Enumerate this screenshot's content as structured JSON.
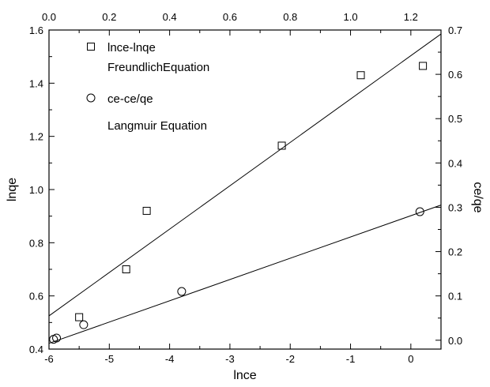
{
  "chart_data": {
    "type": "scatter",
    "title": "",
    "grid": false,
    "legend_position": "top-left",
    "colors": {
      "ink": "#000000",
      "background": "#ffffff"
    },
    "axes": {
      "x_bottom": {
        "label": "lnce",
        "range": [
          -6,
          0.5
        ],
        "ticks": [
          -6,
          -5,
          -4,
          -3,
          -2,
          -1,
          0
        ],
        "tick_labels": [
          "-6",
          "-5",
          "-4",
          "-3",
          "-2",
          "-1",
          "0"
        ]
      },
      "x_top": {
        "label": "",
        "range": [
          0,
          1.3
        ],
        "ticks": [
          0,
          0.2,
          0.4,
          0.6,
          0.8,
          1.0,
          1.2
        ],
        "tick_labels": [
          "0.0",
          "0.2",
          "0.4",
          "0.6",
          "0.8",
          "1.0",
          "1.2"
        ]
      },
      "y_left": {
        "label": "lnqe",
        "range": [
          0.4,
          1.6
        ],
        "ticks": [
          0.4,
          0.6,
          0.8,
          1.0,
          1.2,
          1.4,
          1.6
        ],
        "tick_labels": [
          "0.4",
          "0.6",
          "0.8",
          "1.0",
          "1.2",
          "1.4",
          "1.6"
        ]
      },
      "y_right": {
        "label": "ce/qe",
        "range": [
          -0.02,
          0.7
        ],
        "ticks": [
          0.0,
          0.1,
          0.2,
          0.3,
          0.4,
          0.5,
          0.6,
          0.7
        ],
        "tick_labels": [
          "0.0",
          "0.1",
          "0.2",
          "0.3",
          "0.4",
          "0.5",
          "0.6",
          "0.7"
        ]
      }
    },
    "series": [
      {
        "name": "lnce-lnqe",
        "axes": [
          "x_bottom",
          "y_left"
        ],
        "marker": "square",
        "x": [
          -5.5,
          -4.72,
          -4.38,
          -2.14,
          -0.83,
          0.2
        ],
        "y": [
          0.52,
          0.7,
          0.92,
          1.165,
          1.43,
          1.465
        ]
      },
      {
        "name": "ce-ce/qe",
        "axes": [
          "x_top",
          "y_right"
        ],
        "marker": "circle",
        "x": [
          0.015,
          0.025,
          0.115,
          0.44,
          1.23
        ],
        "y": [
          0.002,
          0.005,
          0.035,
          0.11,
          0.29
        ]
      }
    ],
    "fit_lines": [
      {
        "axes": [
          "x_bottom",
          "y_left"
        ],
        "x": [
          -6,
          0.5
        ],
        "y": [
          0.525,
          1.585
        ]
      },
      {
        "axes": [
          "x_top",
          "y_right"
        ],
        "x": [
          0,
          1.3
        ],
        "y": [
          -0.007,
          0.305
        ]
      }
    ],
    "legend": [
      {
        "marker": "square",
        "lines": [
          "lnce-lnqe",
          "FreundlichEquation"
        ]
      },
      {
        "marker": "circle",
        "lines": [
          "ce-ce/qe",
          "Langmuir  Equation"
        ]
      }
    ]
  }
}
